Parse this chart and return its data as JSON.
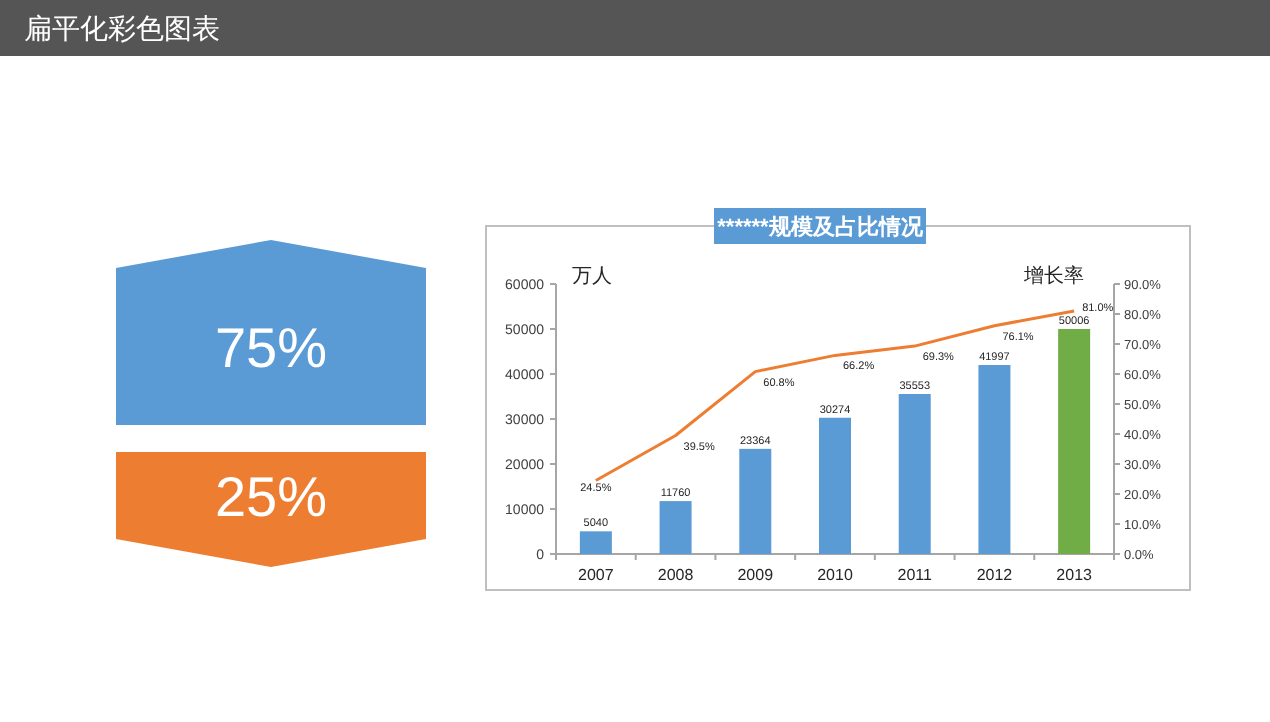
{
  "chart_data": [
    {
      "type": "other",
      "title": "扁平化彩色图表",
      "categories": [
        null,
        null
      ],
      "values": [
        75,
        25
      ],
      "colors": [
        "#5b9bd5",
        "#ed7d31"
      ],
      "value_labels": [
        "75%",
        "25%"
      ]
    },
    {
      "type": "bar",
      "title": "******规模及占比情况",
      "ylabel": "万人",
      "y2label": "增长率",
      "categories": [
        "2007",
        "2008",
        "2009",
        "2010",
        "2011",
        "2012",
        "2013"
      ],
      "series": [
        {
          "type": "bar",
          "colors": [
            "#5b9bd5",
            "#5b9bd5",
            "#5b9bd5",
            "#5b9bd5",
            "#5b9bd5",
            "#5b9bd5",
            "#70ad47"
          ],
          "values": [
            5040,
            11760,
            23364,
            30274,
            35553,
            41997,
            50006
          ],
          "value_labels": [
            "5040",
            "11760",
            "23364",
            "30274",
            "35553",
            "41997",
            "50006"
          ]
        },
        {
          "type": "line",
          "axis": "y2",
          "color": "#ed7d31",
          "values": [
            24.5,
            39.5,
            60.8,
            66.2,
            69.3,
            76.1,
            81.0
          ],
          "value_labels": [
            "24.5%",
            "39.5%",
            "60.8%",
            "66.2%",
            "69.3%",
            "76.1%",
            "81.0%"
          ]
        }
      ],
      "ylim": [
        0,
        60000
      ],
      "yticks": [
        0,
        10000,
        20000,
        30000,
        40000,
        50000,
        60000
      ],
      "y2lim": [
        0,
        90
      ],
      "y2ticks": [
        {
          "value": 0,
          "label": "0.0%"
        },
        {
          "value": 10,
          "label": "10.0%"
        },
        {
          "value": 20,
          "label": "20.0%"
        },
        {
          "value": 30,
          "label": "30.0%"
        },
        {
          "value": 40,
          "label": "40.0%"
        },
        {
          "value": 50,
          "label": "50.0%"
        },
        {
          "value": 60,
          "label": "60.0%"
        },
        {
          "value": 70,
          "label": "70.0%"
        },
        {
          "value": 80,
          "label": "80.0%"
        },
        {
          "value": 90,
          "label": "90.0%"
        }
      ],
      "grid": false,
      "marker": "none",
      "line_style": "solid"
    }
  ]
}
